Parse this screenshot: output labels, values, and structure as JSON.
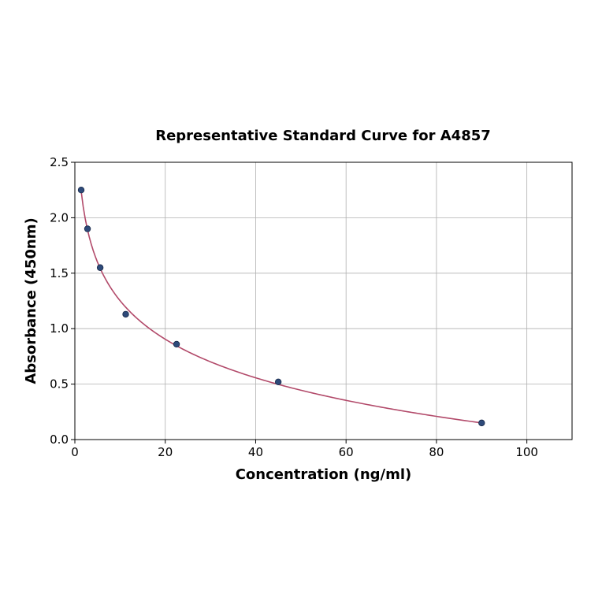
{
  "chart_data": {
    "type": "scatter",
    "title": "Representative Standard Curve for A4857",
    "xlabel": "Concentration (ng/ml)",
    "ylabel": "Absorbance (450nm)",
    "xlim": [
      0,
      110
    ],
    "ylim": [
      0,
      2.5
    ],
    "xticks": [
      0,
      20,
      40,
      60,
      80,
      100
    ],
    "yticks": [
      0.0,
      0.5,
      1.0,
      1.5,
      2.0,
      2.5
    ],
    "xtick_labels": [
      "0",
      "20",
      "40",
      "60",
      "80",
      "100"
    ],
    "ytick_labels": [
      "0.0",
      "0.5",
      "1.0",
      "1.5",
      "2.0",
      "2.5"
    ],
    "grid": true,
    "series": [
      {
        "points": [
          {
            "x": 1.4,
            "y": 2.25
          },
          {
            "x": 2.8,
            "y": 1.9
          },
          {
            "x": 5.6,
            "y": 1.55
          },
          {
            "x": 11.25,
            "y": 1.13
          },
          {
            "x": 22.5,
            "y": 0.86
          },
          {
            "x": 45,
            "y": 0.52
          },
          {
            "x": 90,
            "y": 0.15
          }
        ],
        "marker_color": "#2e4a7a",
        "marker_edge": "#1a2a4a"
      }
    ],
    "fit_curve": {
      "type": "log-linear",
      "color": "#b24a6a",
      "x_range": [
        1.4,
        90
      ]
    }
  }
}
